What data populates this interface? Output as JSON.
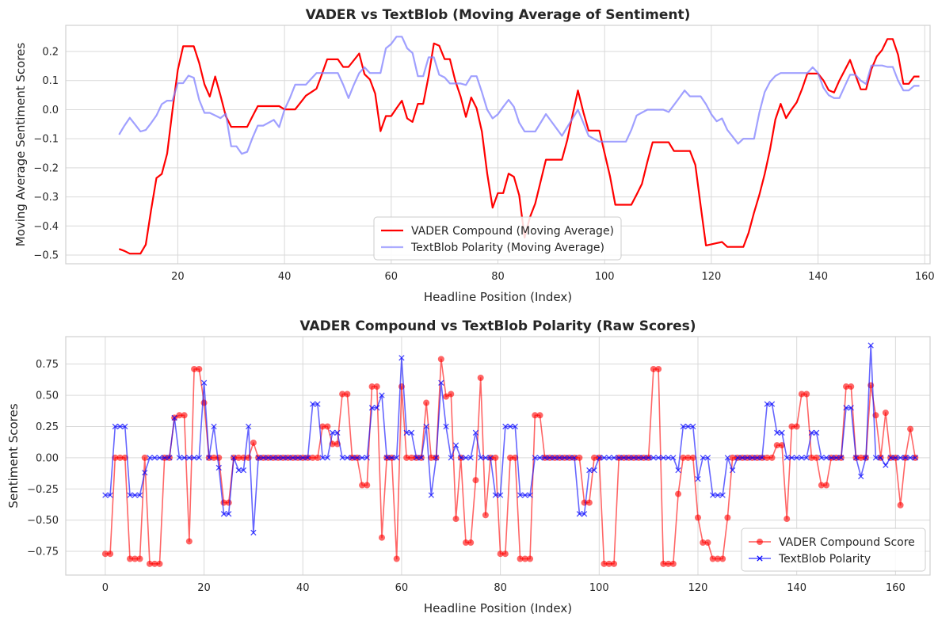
{
  "chart_data": [
    {
      "type": "line",
      "title": "VADER vs TextBlob (Moving Average of Sentiment)",
      "xlabel": "Headline Position (Index)",
      "ylabel": "Moving Average Sentiment Scores",
      "xlim": [
        -1,
        161
      ],
      "ylim": [
        -0.53,
        0.29
      ],
      "xticks": [
        20,
        40,
        60,
        80,
        100,
        120,
        140,
        160
      ],
      "yticks": [
        -0.5,
        -0.4,
        -0.3,
        -0.2,
        -0.1,
        0.0,
        0.1,
        0.2
      ],
      "ytick_labels": [
        "−0.5",
        "−0.4",
        "−0.3",
        "−0.2",
        "−0.1",
        "0.0",
        "0.1",
        "0.2"
      ],
      "grid": true,
      "legend_position": "lower center",
      "series": [
        {
          "name": "VADER Compound (Moving Average)",
          "color": "#ff0000",
          "x": [
            9,
            10,
            11,
            12,
            13,
            14,
            15,
            16,
            17,
            18,
            19,
            20,
            21,
            22,
            23,
            24,
            25,
            26,
            27,
            28,
            29,
            30,
            31,
            32,
            33,
            34,
            35,
            36,
            37,
            38,
            39,
            40,
            41,
            42,
            43,
            44,
            45,
            46,
            47,
            48,
            49,
            50,
            51,
            52,
            53,
            54,
            55,
            56,
            57,
            58,
            59,
            60,
            61,
            62,
            63,
            64,
            65,
            66,
            67,
            68,
            69,
            70,
            71,
            72,
            73,
            74,
            75,
            76,
            77,
            78,
            79,
            80,
            81,
            82,
            83,
            84,
            85,
            86,
            87,
            88,
            89,
            90,
            91,
            92,
            93,
            94,
            95,
            96,
            97,
            98,
            99,
            100,
            101,
            102,
            103,
            104,
            105,
            106,
            107,
            108,
            109,
            110,
            111,
            112,
            113,
            114,
            115,
            116,
            117,
            118,
            119,
            120,
            121,
            122,
            123,
            124,
            125,
            126,
            127,
            128,
            129,
            130,
            131,
            132,
            133,
            134,
            135,
            136,
            137,
            138,
            139,
            140,
            141,
            142,
            143,
            144,
            145,
            146,
            147,
            148,
            149,
            150,
            151,
            152,
            153,
            154,
            155,
            156,
            157,
            158,
            159
          ],
          "values": [
            -0.479,
            -0.486,
            -0.495,
            -0.495,
            -0.495,
            -0.464,
            -0.344,
            -0.235,
            -0.221,
            -0.151,
            -0.002,
            0.136,
            0.218,
            0.218,
            0.218,
            0.161,
            0.087,
            0.045,
            0.114,
            0.049,
            -0.022,
            -0.059,
            -0.059,
            -0.059,
            -0.059,
            -0.023,
            0.012,
            0.012,
            0.012,
            0.012,
            0.012,
            0.001,
            0.001,
            0.001,
            0.024,
            0.048,
            0.06,
            0.072,
            0.122,
            0.173,
            0.173,
            0.173,
            0.147,
            0.147,
            0.17,
            0.193,
            0.122,
            0.104,
            0.055,
            -0.074,
            -0.022,
            -0.022,
            0.005,
            0.031,
            -0.03,
            -0.042,
            0.02,
            0.02,
            0.115,
            0.228,
            0.22,
            0.174,
            0.174,
            0.1,
            0.045,
            -0.025,
            0.042,
            0.005,
            -0.076,
            -0.22,
            -0.337,
            -0.287,
            -0.287,
            -0.22,
            -0.231,
            -0.295,
            -0.44,
            -0.37,
            -0.323,
            -0.247,
            -0.172,
            -0.172,
            -0.172,
            -0.172,
            -0.105,
            -0.017,
            0.066,
            -0.008,
            -0.072,
            -0.072,
            -0.072,
            -0.15,
            -0.228,
            -0.327,
            -0.327,
            -0.327,
            -0.327,
            -0.292,
            -0.255,
            -0.18,
            -0.112,
            -0.112,
            -0.112,
            -0.112,
            -0.142,
            -0.142,
            -0.142,
            -0.142,
            -0.19,
            -0.33,
            -0.467,
            -0.463,
            -0.459,
            -0.455,
            -0.472,
            -0.472,
            -0.472,
            -0.472,
            -0.423,
            -0.354,
            -0.293,
            -0.222,
            -0.137,
            -0.034,
            0.02,
            -0.029,
            0.0,
            0.025,
            0.071,
            0.124,
            0.124,
            0.124,
            0.101,
            0.067,
            0.059,
            0.1,
            0.135,
            0.171,
            0.12,
            0.07,
            0.07,
            0.139,
            0.183,
            0.205,
            0.243,
            0.243,
            0.189,
            0.089,
            0.089,
            0.114,
            0.114
          ]
        },
        {
          "name": "TextBlob Polarity (Moving Average)",
          "color": "#8080ff",
          "x": [
            9,
            10,
            11,
            12,
            13,
            14,
            15,
            16,
            17,
            18,
            19,
            20,
            21,
            22,
            23,
            24,
            25,
            26,
            27,
            28,
            29,
            30,
            31,
            32,
            33,
            34,
            35,
            36,
            37,
            38,
            39,
            40,
            41,
            42,
            43,
            44,
            45,
            46,
            47,
            48,
            49,
            50,
            51,
            52,
            53,
            54,
            55,
            56,
            57,
            58,
            59,
            60,
            61,
            62,
            63,
            64,
            65,
            66,
            67,
            68,
            69,
            70,
            71,
            72,
            73,
            74,
            75,
            76,
            77,
            78,
            79,
            80,
            81,
            82,
            83,
            84,
            85,
            86,
            87,
            88,
            89,
            90,
            91,
            92,
            93,
            94,
            95,
            96,
            97,
            98,
            99,
            100,
            101,
            102,
            103,
            104,
            105,
            106,
            107,
            108,
            109,
            110,
            111,
            112,
            113,
            114,
            115,
            116,
            117,
            118,
            119,
            120,
            121,
            122,
            123,
            124,
            125,
            126,
            127,
            128,
            129,
            130,
            131,
            132,
            133,
            134,
            135,
            136,
            137,
            138,
            139,
            140,
            141,
            142,
            143,
            144,
            145,
            146,
            147,
            148,
            149,
            150,
            151,
            152,
            153,
            154,
            155,
            156,
            157,
            158,
            159
          ],
          "values": [
            -0.086,
            -0.055,
            -0.028,
            -0.051,
            -0.075,
            -0.07,
            -0.046,
            -0.02,
            0.019,
            0.031,
            0.031,
            0.091,
            0.091,
            0.117,
            0.11,
            0.034,
            -0.011,
            -0.011,
            -0.02,
            -0.029,
            -0.014,
            -0.126,
            -0.126,
            -0.152,
            -0.145,
            -0.097,
            -0.055,
            -0.055,
            -0.045,
            -0.035,
            -0.06,
            0.0,
            0.04,
            0.086,
            0.086,
            0.086,
            0.106,
            0.126,
            0.126,
            0.126,
            0.126,
            0.126,
            0.086,
            0.04,
            0.086,
            0.126,
            0.146,
            0.126,
            0.126,
            0.126,
            0.211,
            0.226,
            0.251,
            0.251,
            0.211,
            0.195,
            0.115,
            0.115,
            0.18,
            0.18,
            0.12,
            0.111,
            0.09,
            0.09,
            0.09,
            0.085,
            0.115,
            0.115,
            0.06,
            0.0,
            -0.03,
            -0.016,
            0.01,
            0.034,
            0.01,
            -0.045,
            -0.075,
            -0.075,
            -0.075,
            -0.045,
            -0.015,
            -0.04,
            -0.065,
            -0.09,
            -0.06,
            -0.03,
            0.0,
            -0.045,
            -0.09,
            -0.1,
            -0.11,
            -0.11,
            -0.11,
            -0.11,
            -0.11,
            -0.11,
            -0.07,
            -0.02,
            -0.01,
            0.0,
            0.0,
            0.0,
            0.0,
            -0.008,
            0.016,
            0.041,
            0.066,
            0.046,
            0.046,
            0.046,
            0.019,
            -0.016,
            -0.04,
            -0.03,
            -0.07,
            -0.093,
            -0.117,
            -0.1,
            -0.1,
            -0.1,
            -0.01,
            0.06,
            0.096,
            0.116,
            0.126,
            0.126,
            0.126,
            0.126,
            0.126,
            0.126,
            0.146,
            0.126,
            0.076,
            0.05,
            0.04,
            0.04,
            0.08,
            0.12,
            0.12,
            0.1,
            0.088,
            0.152,
            0.152,
            0.152,
            0.147,
            0.147,
            0.1,
            0.066,
            0.066,
            0.082,
            0.082
          ]
        }
      ]
    },
    {
      "type": "line",
      "title": "VADER Compound vs TextBlob Polarity (Raw Scores)",
      "xlabel": "Headline Position (Index)",
      "ylabel": "Sentiment Scores",
      "xlim": [
        -8,
        167
      ],
      "ylim": [
        -0.94,
        0.97
      ],
      "xticks": [
        0,
        20,
        40,
        60,
        80,
        100,
        120,
        140,
        160
      ],
      "yticks": [
        -0.75,
        -0.5,
        -0.25,
        0.0,
        0.25,
        0.5,
        0.75
      ],
      "ytick_labels": [
        "−0.75",
        "−0.50",
        "−0.25",
        "0.00",
        "0.25",
        "0.50",
        "0.75"
      ],
      "grid": true,
      "legend_position": "lower right",
      "series": [
        {
          "name": "VADER Compound Score",
          "color": "#ff0000",
          "marker": "circle",
          "values": [
            -0.77,
            -0.77,
            0,
            0,
            0,
            -0.81,
            -0.81,
            -0.81,
            0,
            -0.85,
            -0.85,
            -0.85,
            0,
            0,
            0.32,
            0.34,
            0.34,
            -0.67,
            0.71,
            0.71,
            0.44,
            0,
            0,
            0,
            -0.36,
            -0.36,
            0,
            0,
            0,
            0,
            0.12,
            0,
            0,
            0,
            0,
            0,
            0,
            0,
            0,
            0,
            0,
            0,
            0,
            0,
            0.25,
            0.25,
            0.11,
            0.11,
            0.51,
            0.51,
            0,
            0,
            -0.22,
            -0.22,
            0.57,
            0.57,
            -0.64,
            0,
            0,
            -0.81,
            0.57,
            0,
            0,
            0,
            0,
            0.44,
            0,
            0,
            0.79,
            0.49,
            0.51,
            -0.49,
            0,
            -0.68,
            -0.68,
            -0.18,
            0.64,
            -0.46,
            0,
            0,
            -0.77,
            -0.77,
            0,
            0,
            -0.81,
            -0.81,
            -0.81,
            0.34,
            0.34,
            0,
            0,
            0,
            0,
            0,
            0,
            0,
            0,
            -0.36,
            -0.36,
            0,
            0,
            -0.85,
            -0.85,
            -0.85,
            0,
            0,
            0,
            0,
            0,
            0,
            0,
            0.71,
            0.71,
            -0.85,
            -0.85,
            -0.85,
            -0.29,
            0,
            0,
            0,
            -0.48,
            -0.68,
            -0.68,
            -0.81,
            -0.81,
            -0.81,
            -0.48,
            0,
            0,
            0,
            0,
            0,
            0,
            0,
            0,
            0,
            0.1,
            0.1,
            -0.49,
            0.25,
            0.25,
            0.51,
            0.51,
            0,
            0,
            -0.22,
            -0.22,
            0,
            0,
            0,
            0.57,
            0.57,
            0,
            0,
            0,
            0.58,
            0.34,
            0,
            0.36,
            0,
            0,
            -0.38,
            0,
            0.23,
            0
          ]
        },
        {
          "name": "TextBlob Polarity",
          "color": "#0000ff",
          "marker": "x",
          "values": [
            -0.3,
            -0.3,
            0.25,
            0.25,
            0.25,
            -0.3,
            -0.3,
            -0.3,
            -0.12,
            0,
            0,
            0,
            0,
            0,
            0.32,
            0,
            0,
            0,
            0,
            0,
            0.6,
            0,
            0.25,
            -0.08,
            -0.45,
            -0.45,
            0,
            -0.1,
            -0.1,
            0.25,
            -0.6,
            0,
            0,
            0,
            0,
            0,
            0,
            0,
            0,
            0,
            0,
            0,
            0.43,
            0.43,
            0,
            0,
            0.2,
            0.2,
            0,
            0,
            0,
            0,
            0,
            0,
            0.4,
            0.4,
            0.5,
            0,
            0,
            0,
            0.8,
            0.2,
            0.2,
            0,
            0,
            0.25,
            -0.3,
            0,
            0.6,
            0.25,
            0,
            0.1,
            0,
            0,
            0,
            0.2,
            0,
            0,
            0,
            -0.3,
            -0.3,
            0.25,
            0.25,
            0.25,
            -0.3,
            -0.3,
            -0.3,
            0,
            0,
            0,
            0,
            0,
            0,
            0,
            0,
            0,
            -0.45,
            -0.45,
            -0.1,
            -0.1,
            0,
            0,
            0,
            0,
            0,
            0,
            0,
            0,
            0,
            0,
            0,
            0,
            0,
            0,
            0,
            0,
            -0.1,
            0.25,
            0.25,
            0.25,
            -0.17,
            0,
            0,
            -0.3,
            -0.3,
            -0.3,
            0,
            -0.1,
            0,
            0,
            0,
            0,
            0,
            0,
            0.43,
            0.43,
            0.2,
            0.2,
            0,
            0,
            0,
            0,
            0,
            0.2,
            0.2,
            0,
            0,
            0,
            0,
            0,
            0.4,
            0.4,
            0,
            -0.15,
            0,
            0.9,
            0,
            0,
            -0.06,
            0,
            0,
            0,
            0,
            0,
            0
          ]
        }
      ]
    }
  ]
}
